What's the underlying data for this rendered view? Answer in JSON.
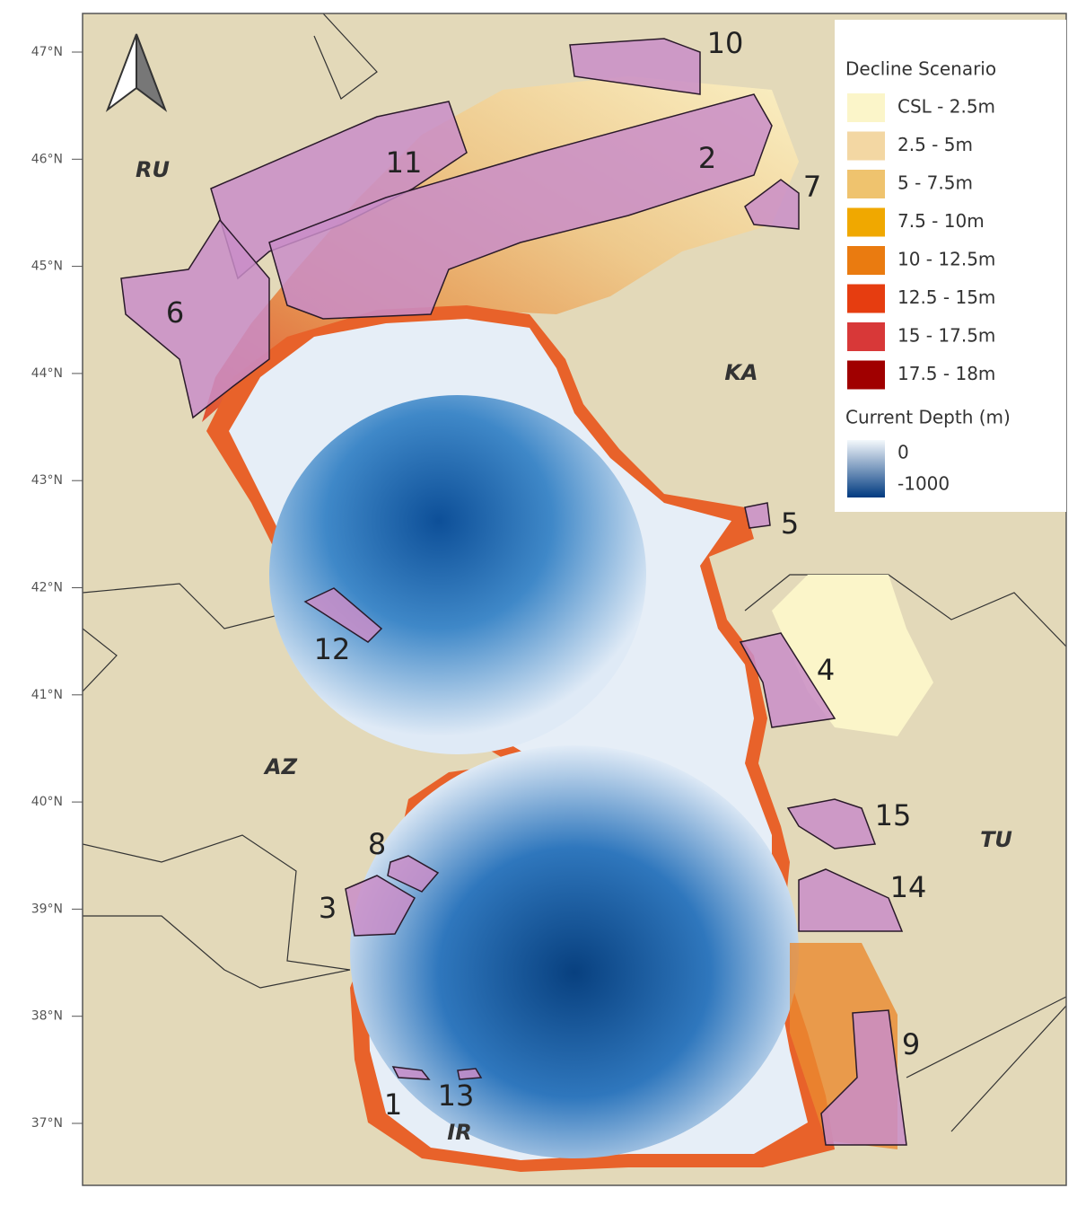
{
  "map": {
    "latitude_labels": [
      "47°N",
      "46°N",
      "45°N",
      "44°N",
      "43°N",
      "42°N",
      "41°N",
      "40°N",
      "39°N",
      "38°N",
      "37°N"
    ],
    "countries": [
      "RU",
      "KA",
      "AZ",
      "TU",
      "IR"
    ],
    "regions": [
      "10",
      "11",
      "2",
      "7",
      "6",
      "5",
      "12",
      "4",
      "15",
      "8",
      "14",
      "3",
      "9",
      "1",
      "13"
    ],
    "legend": {
      "title": "Decline Scenario",
      "entries": [
        {
          "label": "CSL - 2.5m",
          "color": "#fbf5c9"
        },
        {
          "label": "2.5 - 5m",
          "color": "#f3d7a3"
        },
        {
          "label": "5 - 7.5m",
          "color": "#efc36e"
        },
        {
          "label": "7.5 - 10m",
          "color": "#f0a800"
        },
        {
          "label": "10 - 12.5m",
          "color": "#ea7b10"
        },
        {
          "label": "12.5 - 15m",
          "color": "#e63d10"
        },
        {
          "label": "15 - 17.5m",
          "color": "#d83838"
        },
        {
          "label": "17.5 - 18m",
          "color": "#a00000"
        }
      ],
      "depth_title": "Current Depth (m)",
      "depth_labels": [
        "0",
        "-1000"
      ]
    }
  }
}
